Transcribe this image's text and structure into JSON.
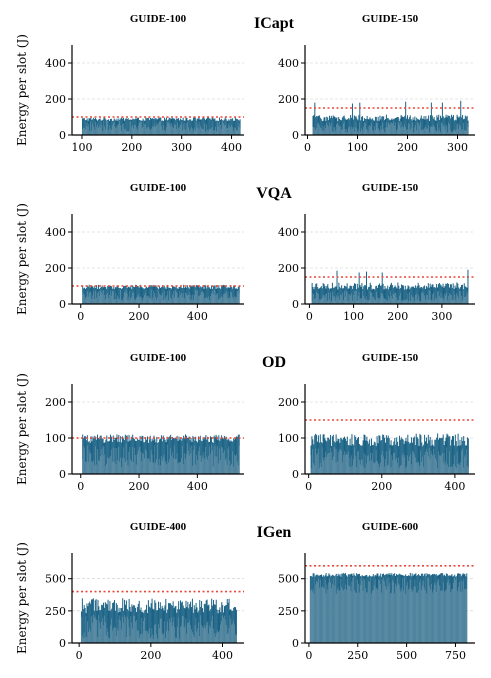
{
  "figure": {
    "ylabel": "Energy per slot (J)",
    "colors": {
      "bar_dark": "#1b6285",
      "bar_light": "#6f98ad",
      "threshold": "#e8473a",
      "grid": "#cccccc",
      "axis": "#000000"
    }
  },
  "rows": [
    {
      "title": "ICapt"
    },
    {
      "title": "VQA"
    },
    {
      "title": "OD"
    },
    {
      "title": "IGen"
    }
  ],
  "chart_data": [
    {
      "type": "bar",
      "row": 0,
      "col": 0,
      "title": "GUIDE-100",
      "xlim": [
        80,
        425
      ],
      "x_range": [
        100,
        418
      ],
      "ylim": [
        0,
        500
      ],
      "xticks": [
        100,
        200,
        300,
        400
      ],
      "yticks": [
        0,
        200,
        400
      ],
      "threshold": 100,
      "base_level": 88,
      "variation": 10,
      "light_min": 20,
      "light_max": 80,
      "spikes": []
    },
    {
      "type": "bar",
      "row": 0,
      "col": 1,
      "title": "GUIDE-150",
      "xlim": [
        -5,
        335
      ],
      "x_range": [
        10,
        322
      ],
      "ylim": [
        0,
        500
      ],
      "xticks": [
        0,
        100,
        200,
        300
      ],
      "yticks": [
        0,
        200,
        400
      ],
      "threshold": 150,
      "base_level": 95,
      "variation": 18,
      "light_min": 15,
      "light_max": 75,
      "spikes": [
        [
          14,
          180
        ],
        [
          88,
          175
        ],
        [
          103,
          180
        ],
        [
          195,
          185
        ],
        [
          246,
          180
        ],
        [
          268,
          180
        ],
        [
          305,
          190
        ]
      ]
    },
    {
      "type": "bar",
      "row": 1,
      "col": 0,
      "title": "GUIDE-100",
      "xlim": [
        -30,
        560
      ],
      "x_range": [
        5,
        545
      ],
      "ylim": [
        0,
        500
      ],
      "xticks": [
        0,
        200,
        400
      ],
      "yticks": [
        0,
        200,
        400
      ],
      "threshold": 100,
      "base_level": 95,
      "variation": 12,
      "light_min": 20,
      "light_max": 80,
      "spikes": []
    },
    {
      "type": "bar",
      "row": 1,
      "col": 1,
      "title": "GUIDE-150",
      "xlim": [
        -10,
        375
      ],
      "x_range": [
        5,
        360
      ],
      "ylim": [
        0,
        500
      ],
      "xticks": [
        0,
        100,
        200,
        300
      ],
      "yticks": [
        0,
        200,
        400
      ],
      "threshold": 150,
      "base_level": 100,
      "variation": 20,
      "light_min": 15,
      "light_max": 75,
      "spikes": [
        [
          62,
          185
        ],
        [
          112,
          175
        ],
        [
          129,
          180
        ],
        [
          163,
          175
        ],
        [
          357,
          190
        ]
      ]
    },
    {
      "type": "bar",
      "row": 2,
      "col": 0,
      "title": "GUIDE-100",
      "xlim": [
        -30,
        560
      ],
      "x_range": [
        5,
        545
      ],
      "ylim": [
        0,
        250
      ],
      "xticks": [
        0,
        200,
        400
      ],
      "yticks": [
        0,
        100,
        200
      ],
      "threshold": 100,
      "base_level": 98,
      "variation": 12,
      "light_min": 20,
      "light_max": 85,
      "spikes": []
    },
    {
      "type": "bar",
      "row": 2,
      "col": 1,
      "title": "GUIDE-150",
      "xlim": [
        -10,
        455
      ],
      "x_range": [
        5,
        438
      ],
      "ylim": [
        0,
        250
      ],
      "xticks": [
        0,
        200,
        400
      ],
      "yticks": [
        0,
        100,
        200
      ],
      "threshold": 150,
      "base_level": 95,
      "variation": 18,
      "light_min": 15,
      "light_max": 75,
      "spikes": []
    },
    {
      "type": "bar",
      "row": 3,
      "col": 0,
      "title": "GUIDE-400",
      "xlim": [
        -20,
        460
      ],
      "x_range": [
        5,
        440
      ],
      "ylim": [
        0,
        700
      ],
      "xticks": [
        0,
        200,
        400
      ],
      "yticks": [
        0,
        250,
        500
      ],
      "threshold": 400,
      "base_level": 290,
      "variation": 60,
      "light_min": 30,
      "light_max": 220,
      "spikes": []
    },
    {
      "type": "bar",
      "row": 3,
      "col": 1,
      "title": "GUIDE-600",
      "xlim": [
        -20,
        850
      ],
      "x_range": [
        5,
        810
      ],
      "ylim": [
        0,
        700
      ],
      "xticks": [
        0,
        250,
        500,
        750
      ],
      "yticks": [
        0,
        250,
        500
      ],
      "threshold": 600,
      "base_level": 530,
      "variation": 15,
      "light_min": 380,
      "light_max": 520,
      "spikes": []
    }
  ]
}
